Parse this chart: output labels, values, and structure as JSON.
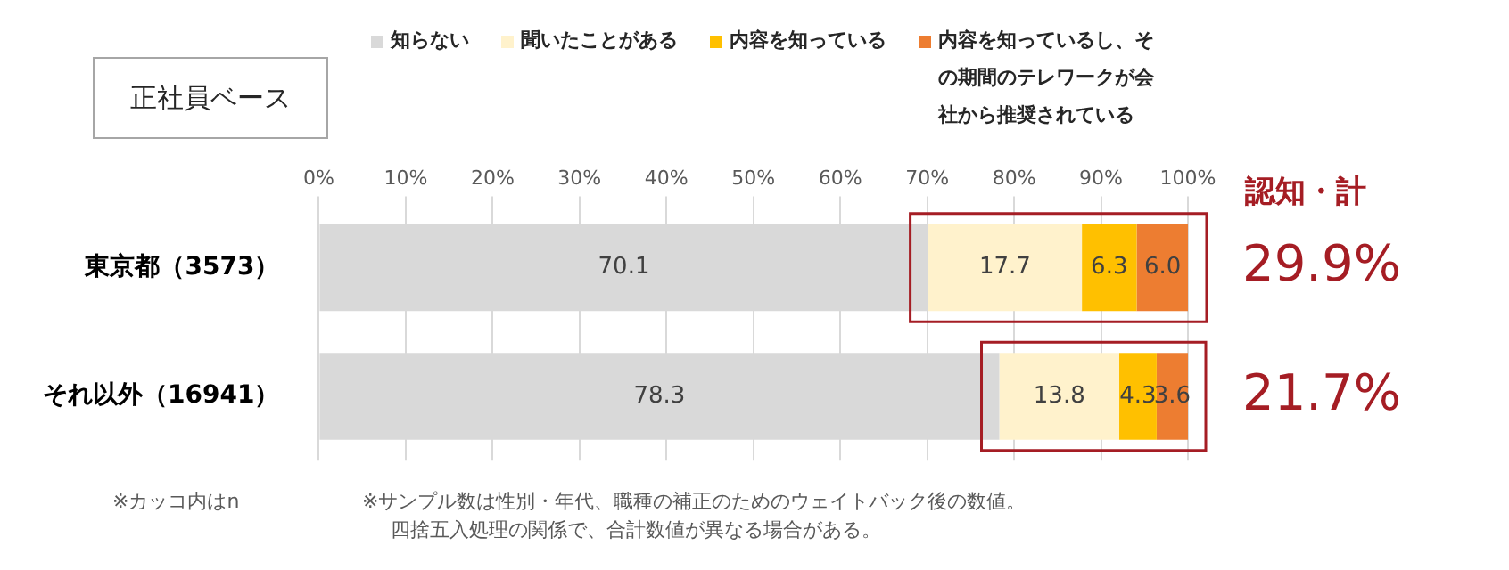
{
  "chart_data": {
    "type": "bar",
    "orientation": "horizontal",
    "stacked": true,
    "title": "正社員ベース",
    "categories": [
      "東京都（3573）",
      "それ以外（16941）"
    ],
    "series": [
      {
        "name": "知らない",
        "color": "#d9d9d9",
        "values": [
          70.1,
          78.3
        ],
        "value_labels": [
          "70.1",
          "78.3"
        ]
      },
      {
        "name": "聞いたことがある",
        "color": "#fff2cc",
        "values": [
          17.7,
          13.8
        ],
        "value_labels": [
          "17.7",
          "13.8"
        ]
      },
      {
        "name": "内容を知っている",
        "color": "#ffc000",
        "values": [
          6.3,
          4.3
        ],
        "value_labels": [
          "6.3",
          "4.3"
        ]
      },
      {
        "name": "内容を知っているし、その期間のテレワークが会社から推奨されている",
        "color": "#ed7d31",
        "values": [
          6.0,
          3.6
        ],
        "value_labels": [
          "6.0",
          "3.6"
        ]
      }
    ],
    "xlim": [
      0,
      100
    ],
    "xticks": [
      {
        "value": 0,
        "label": "0%"
      },
      {
        "value": 10,
        "label": "10%"
      },
      {
        "value": 20,
        "label": "20%"
      },
      {
        "value": 30,
        "label": "30%"
      },
      {
        "value": 40,
        "label": "40%"
      },
      {
        "value": 50,
        "label": "50%"
      },
      {
        "value": 60,
        "label": "60%"
      },
      {
        "value": 70,
        "label": "70%"
      },
      {
        "value": 80,
        "label": "80%"
      },
      {
        "value": 90,
        "label": "90%"
      },
      {
        "value": 100,
        "label": "100%"
      }
    ],
    "grid": "x",
    "legend": "top",
    "annotations": [
      "認知・計",
      "29.9%",
      "21.7%",
      "※カッコ内はn",
      "※サンプル数は性別・年代、職種の補正のためのウェイトバック後の数値。",
      "四捨五入処理の関係で、合計数値が異なる場合がある。"
    ]
  }
}
